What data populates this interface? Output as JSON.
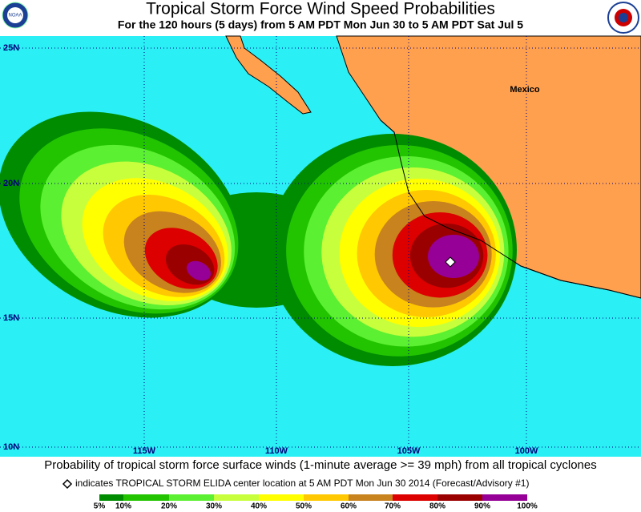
{
  "header": {
    "title": "Tropical Storm Force Wind Speed Probabilities",
    "subtitle": "For the 120 hours (5 days) from 5 AM PDT Mon Jun 30 to 5 AM PDT Sat Jul 5"
  },
  "map": {
    "lat_labels": [
      "25N",
      "20N",
      "15N",
      "10N"
    ],
    "lon_labels": [
      "115W",
      "110W",
      "105W",
      "100W"
    ],
    "place_label": "Mexico"
  },
  "footer": {
    "caption": "Probability of tropical storm force surface winds (1-minute average >= 39 mph) from all tropical cyclones",
    "note": "indicates TROPICAL STORM ELIDA center location at 5 AM PDT Mon Jun 30 2014 (Forecast/Advisory #1)"
  },
  "legend": {
    "labels": [
      "5%",
      "10%",
      "20%",
      "30%",
      "40%",
      "50%",
      "60%",
      "70%",
      "80%",
      "90%",
      "100%"
    ],
    "colors": [
      "#008c00",
      "#22c400",
      "#5cf032",
      "#c8ff3c",
      "#ffff00",
      "#ffc800",
      "#c8821e",
      "#dc0000",
      "#9b0000",
      "#960096"
    ]
  }
}
